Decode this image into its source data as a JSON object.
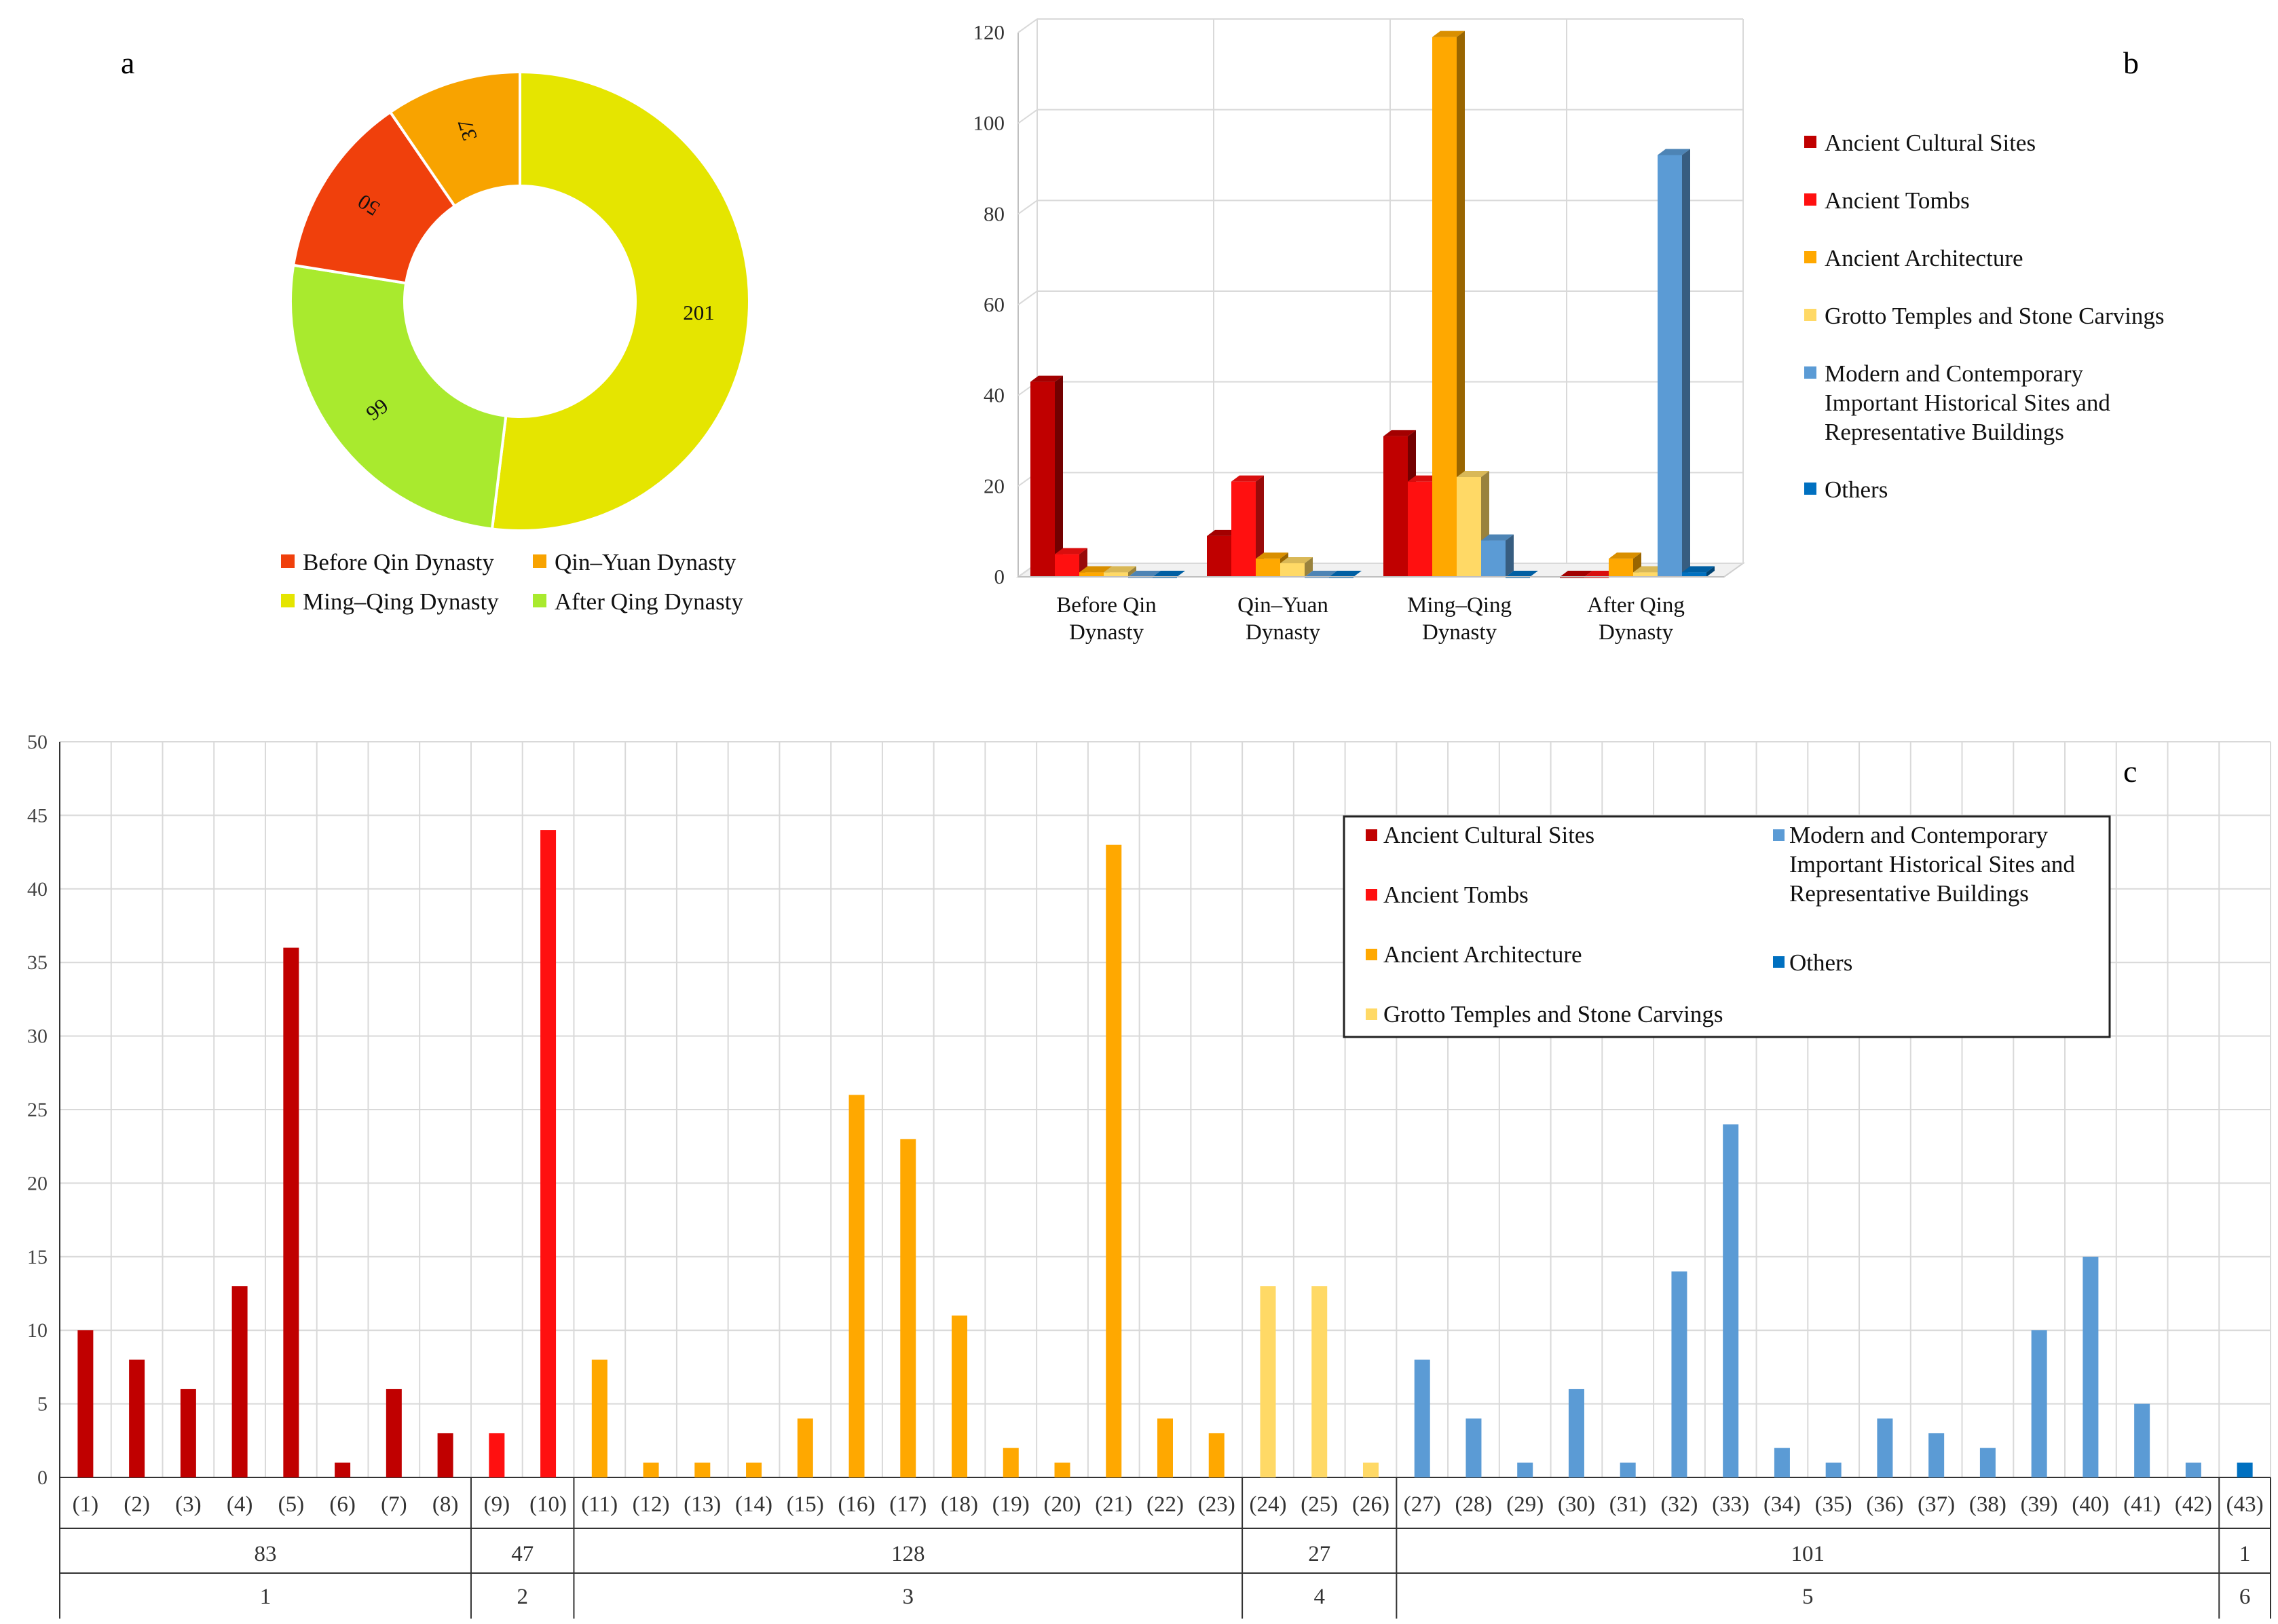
{
  "chart_data": [
    {
      "panel": "a",
      "type": "pie",
      "style": "donut",
      "categories": [
        "Before Qin Dynasty",
        "Qin–Yuan Dynasty",
        "Ming–Qing Dynasty",
        "After Qing Dynasty"
      ],
      "values": [
        50,
        37,
        201,
        99
      ],
      "colors": [
        "#f0400c",
        "#f8a300",
        "#e5e500",
        "#a9ea2e"
      ],
      "legend": [
        "Before Qin Dynasty",
        "Qin–Yuan Dynasty",
        "Ming–Qing Dynasty",
        "After Qing Dynasty"
      ],
      "legend_position": "bottom"
    },
    {
      "panel": "b",
      "type": "bar",
      "style": "3d-grouped",
      "categories": [
        "Before Qin|Dynasty",
        "Qin–Yuan|Dynasty",
        "Ming–Qing|Dynasty",
        "After Qing|Dynasty"
      ],
      "series": [
        {
          "name": "Ancient Cultural Sites",
          "color": "#c00000",
          "values": [
            43,
            9,
            31,
            0
          ]
        },
        {
          "name": "Ancient Tombs",
          "color": "#ff1010",
          "values": [
            5,
            21,
            21,
            0
          ]
        },
        {
          "name": "Ancient Architecture",
          "color": "#ffa800",
          "values": [
            1,
            4,
            119,
            4
          ]
        },
        {
          "name": "Grotto Temples and Stone Carvings",
          "color": "#ffd966",
          "values": [
            1,
            3,
            22,
            1
          ]
        },
        {
          "name": "Modern and Contemporary|Important Historical Sites and|Representative Buildings",
          "color": "#5b9bd5",
          "values": [
            0,
            0,
            8,
            93
          ]
        },
        {
          "name": "Others",
          "color": "#0070c0",
          "values": [
            0,
            0,
            0,
            1
          ]
        }
      ],
      "ylim": [
        0,
        120
      ],
      "yticks": [
        "0",
        "20",
        "40",
        "60",
        "80",
        "100",
        "120"
      ],
      "legend_position": "right"
    },
    {
      "panel": "c",
      "type": "bar",
      "categories": [
        "(1)",
        "(2)",
        "(3)",
        "(4)",
        "(5)",
        "(6)",
        "(7)",
        "(8)",
        "(9)",
        "(10)",
        "(11)",
        "(12)",
        "(13)",
        "(14)",
        "(15)",
        "(16)",
        "(17)",
        "(18)",
        "(19)",
        "(20)",
        "(21)",
        "(22)",
        "(23)",
        "(24)",
        "(25)",
        "(26)",
        "(27)",
        "(28)",
        "(29)",
        "(30)",
        "(31)",
        "(32)",
        "(33)",
        "(34)",
        "(35)",
        "(36)",
        "(37)",
        "(38)",
        "(39)",
        "(40)",
        "(41)",
        "(42)",
        "(43)"
      ],
      "values": [
        10,
        8,
        6,
        13,
        36,
        1,
        6,
        3,
        3,
        44,
        8,
        1,
        1,
        1,
        4,
        26,
        23,
        11,
        2,
        1,
        43,
        4,
        3,
        13,
        13,
        1,
        8,
        4,
        1,
        6,
        1,
        14,
        24,
        2,
        1,
        4,
        3,
        2,
        10,
        15,
        5,
        1,
        1
      ],
      "series_index": [
        0,
        0,
        0,
        0,
        0,
        0,
        0,
        0,
        1,
        1,
        2,
        2,
        2,
        2,
        2,
        2,
        2,
        2,
        2,
        2,
        2,
        2,
        2,
        3,
        3,
        3,
        4,
        4,
        4,
        4,
        4,
        4,
        4,
        4,
        4,
        4,
        4,
        4,
        4,
        4,
        4,
        4,
        5
      ],
      "groups": [
        {
          "label": "1",
          "total": "83",
          "start": 0,
          "end": 7
        },
        {
          "label": "2",
          "total": "47",
          "start": 8,
          "end": 9
        },
        {
          "label": "3",
          "total": "128",
          "start": 10,
          "end": 22
        },
        {
          "label": "4",
          "total": "27",
          "start": 23,
          "end": 25
        },
        {
          "label": "5",
          "total": "101",
          "start": 26,
          "end": 41
        },
        {
          "label": "6",
          "total": "1",
          "start": 42,
          "end": 42
        }
      ],
      "ylim": [
        0,
        50
      ],
      "yticks": [
        "0",
        "5",
        "10",
        "15",
        "20",
        "25",
        "30",
        "35",
        "40",
        "45",
        "50"
      ],
      "legend_left": [
        {
          "name": "Ancient Cultural Sites",
          "color": "#c00000"
        },
        {
          "name": "Ancient Tombs",
          "color": "#ff1010"
        },
        {
          "name": "Ancient Architecture",
          "color": "#ffa800"
        },
        {
          "name": "Grotto Temples and Stone Carvings",
          "color": "#ffd966"
        }
      ],
      "legend_right": [
        {
          "name": "Modern and Contemporary|Important Historical Sites and|Representative Buildings",
          "color": "#5b9bd5"
        },
        {
          "name": "Others",
          "color": "#0070c0"
        }
      ],
      "legend_position": "top-right"
    }
  ],
  "labels": {
    "a": "a",
    "b": "b",
    "c": "c"
  }
}
